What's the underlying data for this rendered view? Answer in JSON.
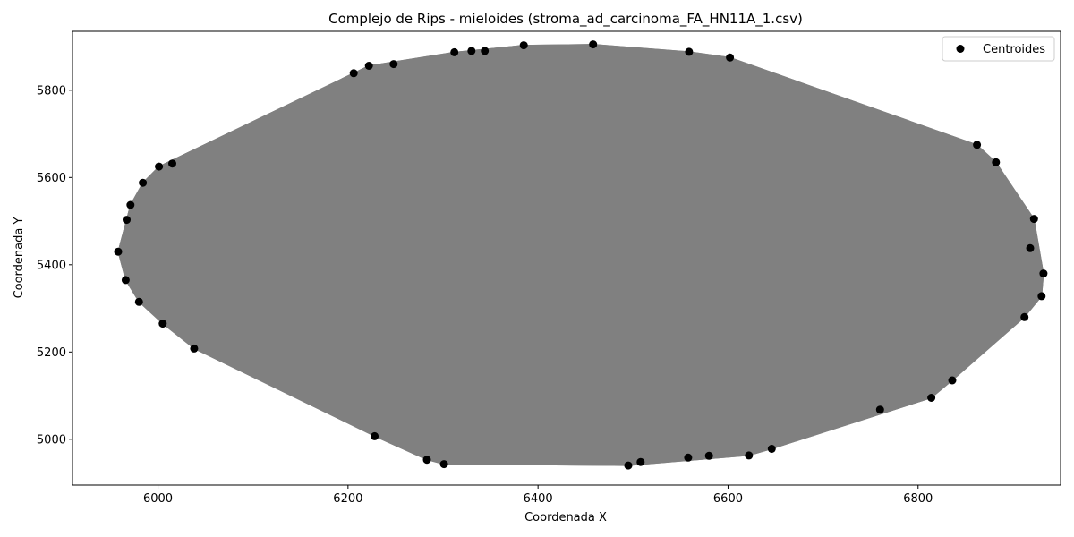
{
  "chart_data": {
    "type": "scatter",
    "title": "Complejo de Rips - mieloides (stroma_ad_carcinoma_FA_HN11A_1.csv)",
    "xlabel": "Coordenada X",
    "ylabel": "Coordenada Y",
    "xlim": [
      5910,
      6950
    ],
    "ylim": [
      4895,
      5935
    ],
    "xticks": [
      6000,
      6200,
      6400,
      6600,
      6800
    ],
    "yticks": [
      5000,
      5200,
      5400,
      5600,
      5800
    ],
    "grid": false,
    "legend_position": "top-right",
    "series": [
      {
        "name": "Centroides",
        "marker": "circle",
        "points": [
          [
            5958,
            5430
          ],
          [
            5966,
            5365
          ],
          [
            5967,
            5503
          ],
          [
            5971,
            5537
          ],
          [
            5980,
            5315
          ],
          [
            5984,
            5588
          ],
          [
            6001,
            5625
          ],
          [
            6005,
            5265
          ],
          [
            6015,
            5632
          ],
          [
            6038,
            5208
          ],
          [
            6206,
            5839
          ],
          [
            6222,
            5856
          ],
          [
            6228,
            5007
          ],
          [
            6248,
            5860
          ],
          [
            6283,
            4953
          ],
          [
            6301,
            4943
          ],
          [
            6312,
            5887
          ],
          [
            6330,
            5890
          ],
          [
            6344,
            5890
          ],
          [
            6385,
            5903
          ],
          [
            6458,
            5905
          ],
          [
            6495,
            4940
          ],
          [
            6508,
            4948
          ],
          [
            6558,
            4958
          ],
          [
            6559,
            5888
          ],
          [
            6580,
            4962
          ],
          [
            6602,
            5875
          ],
          [
            6622,
            4963
          ],
          [
            6646,
            4978
          ],
          [
            6760,
            5068
          ],
          [
            6814,
            5095
          ],
          [
            6836,
            5135
          ],
          [
            6862,
            5675
          ],
          [
            6882,
            5635
          ],
          [
            6912,
            5280
          ],
          [
            6918,
            5438
          ],
          [
            6922,
            5505
          ],
          [
            6930,
            5328
          ],
          [
            6932,
            5380
          ]
        ]
      }
    ],
    "edge_color": "#808080",
    "marker_color": "#000000"
  }
}
